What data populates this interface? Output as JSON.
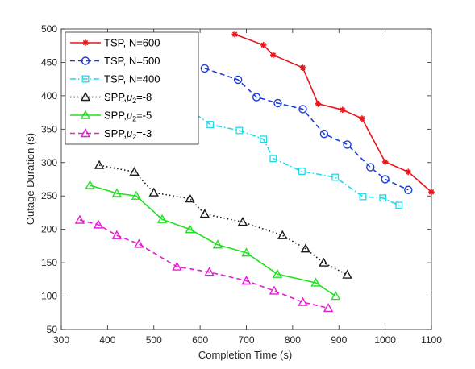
{
  "chart_data": {
    "type": "line",
    "xlabel": "Completion Time (s)",
    "ylabel": "Outage Duration (s)",
    "xlim": [
      300,
      1100
    ],
    "ylim": [
      50,
      500
    ],
    "xticks": [
      300,
      400,
      500,
      600,
      700,
      800,
      900,
      1000,
      1100
    ],
    "yticks": [
      50,
      100,
      150,
      200,
      250,
      300,
      350,
      400,
      450,
      500
    ],
    "grid": false,
    "legend_position": "top-left",
    "series": [
      {
        "name": "TSP, N=600",
        "color": "#e8151b",
        "dash": "solid",
        "marker": "star",
        "x": [
          675,
          737,
          758,
          822,
          855,
          908,
          950,
          1000,
          1050,
          1100
        ],
        "y": [
          492,
          476,
          461,
          442,
          388,
          379,
          366,
          301,
          286,
          256
        ]
      },
      {
        "name": "TSP, N=500",
        "color": "#1b3fd6",
        "dash": "dashed",
        "marker": "circle",
        "x": [
          610,
          682,
          722,
          768,
          822,
          868,
          918,
          968,
          1000,
          1050
        ],
        "y": [
          441,
          424,
          398,
          389,
          380,
          343,
          327,
          293,
          275,
          259
        ]
      },
      {
        "name": "TSP, N=400",
        "color": "#21d8e6",
        "dash": "dashdot",
        "marker": "square",
        "x": [
          550,
          622,
          685,
          737,
          758,
          820,
          892,
          952,
          995,
          1030
        ],
        "y": [
          392,
          357,
          348,
          335,
          306,
          287,
          278,
          249,
          247,
          236
        ]
      },
      {
        "name": "SPP,",
        "mu_label": "μ",
        "mu_sub": "2",
        "mu_value": "=-8",
        "color": "#1a1a1a",
        "dash": "dotted",
        "marker": "triangle",
        "x": [
          382,
          458,
          500,
          578,
          610,
          692,
          778,
          828,
          867,
          918
        ],
        "y": [
          296,
          286,
          255,
          246,
          223,
          211,
          191,
          171,
          150,
          132
        ]
      },
      {
        "name": "SPP,",
        "mu_label": "μ",
        "mu_sub": "2",
        "mu_value": "=-5",
        "color": "#22e022",
        "dash": "solid",
        "marker": "triangle",
        "x": [
          362,
          420,
          462,
          518,
          578,
          638,
          700,
          767,
          850,
          893
        ],
        "y": [
          266,
          254,
          250,
          215,
          200,
          177,
          165,
          133,
          120,
          100
        ]
      },
      {
        "name": "SPP,",
        "mu_label": "μ",
        "mu_sub": "2",
        "mu_value": "=-3",
        "color": "#e81ad4",
        "dash": "dashed",
        "marker": "triangle",
        "x": [
          340,
          380,
          420,
          468,
          550,
          620,
          700,
          760,
          822,
          877
        ],
        "y": [
          214,
          207,
          191,
          178,
          144,
          136,
          123,
          108,
          91,
          82
        ]
      }
    ]
  }
}
